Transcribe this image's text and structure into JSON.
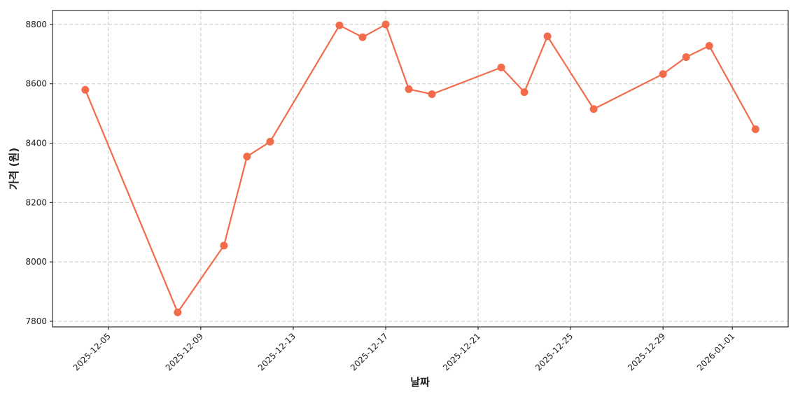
{
  "chart_data": {
    "type": "line",
    "xlabel": "날짜",
    "ylabel": "가격 (원)",
    "x": [
      "2025-12-04",
      "2025-12-08",
      "2025-12-10",
      "2025-12-11",
      "2025-12-12",
      "2025-12-15",
      "2025-12-16",
      "2025-12-17",
      "2025-12-18",
      "2025-12-19",
      "2025-12-22",
      "2025-12-23",
      "2025-12-24",
      "2025-12-26",
      "2025-12-29",
      "2025-12-30",
      "2025-12-31",
      "2026-01-02"
    ],
    "series": [
      {
        "color": "#f26b4a",
        "values": [
          8580,
          7830,
          8055,
          8355,
          8405,
          8797,
          8757,
          8800,
          8582,
          8565,
          8655,
          8572,
          8760,
          8515,
          8633,
          8690,
          8728,
          8447
        ]
      }
    ],
    "xlim": [
      "2025-12-02T14:00",
      "2026-01-03T10:00"
    ],
    "xticks": [
      "2025-12-05",
      "2025-12-09",
      "2025-12-13",
      "2025-12-17",
      "2025-12-21",
      "2025-12-25",
      "2025-12-29",
      "2026-01-01"
    ],
    "ylim": [
      7781,
      8847
    ],
    "yticks": [
      7800,
      8000,
      8200,
      8400,
      8600,
      8800
    ],
    "grid": true
  }
}
